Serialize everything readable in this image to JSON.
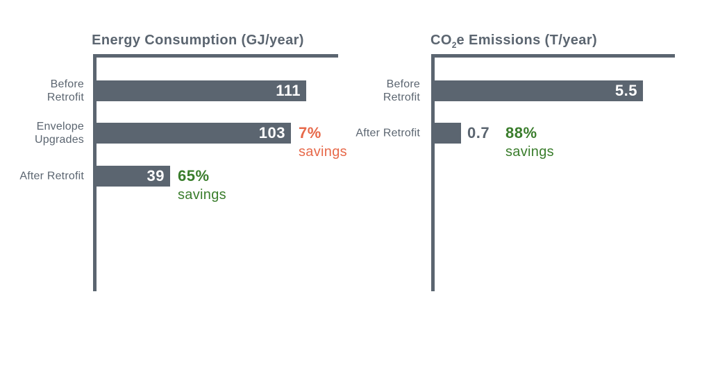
{
  "colors": {
    "slate": "#5b6570",
    "bar": "#5b6570",
    "bar_value_text": "#ffffff",
    "orange": "#e7694a",
    "green": "#3a7d2c",
    "background": "#ffffff"
  },
  "chart_data": [
    {
      "type": "bar",
      "orientation": "horizontal",
      "title": "Energy Consumption (GJ/year)",
      "title_parts": [
        {
          "text": "Energy Consumption (GJ/year)"
        }
      ],
      "categories": [
        "Before Retrofit",
        "Envelope Upgrades",
        "After Retrofit"
      ],
      "values": [
        111,
        103,
        39
      ],
      "value_labels": [
        "111",
        "103",
        "39"
      ],
      "xlim": [
        0,
        128
      ],
      "grid": false,
      "legend": false,
      "annotations": [
        null,
        {
          "percent": "7%",
          "label": "savings",
          "color": "orange"
        },
        {
          "percent": "65%",
          "label": "savings",
          "color": "green"
        }
      ]
    },
    {
      "type": "bar",
      "orientation": "horizontal",
      "title": "CO2e Emissions (T/year)",
      "title_parts": [
        {
          "text": "CO"
        },
        {
          "text": "2",
          "subscript": true
        },
        {
          "text": "e Emissions (T/year)"
        }
      ],
      "categories": [
        "Before Retrofit",
        "After Retrofit"
      ],
      "values": [
        5.5,
        0.7
      ],
      "value_labels": [
        "5.5",
        "0.7"
      ],
      "xlim": [
        0,
        6.35
      ],
      "grid": false,
      "legend": false,
      "annotations": [
        null,
        {
          "percent": "88%",
          "label": "savings",
          "color": "green"
        }
      ]
    }
  ]
}
